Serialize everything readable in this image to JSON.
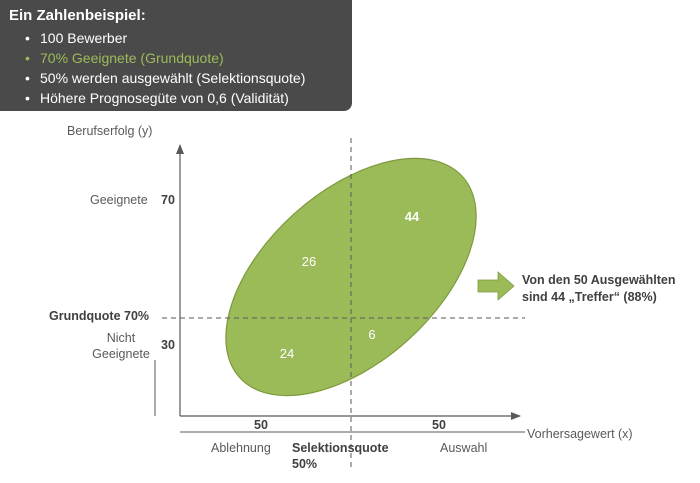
{
  "infobox": {
    "title": "Ein Zahlenbeispiel:",
    "items": [
      "100 Bewerber",
      "70% Geeignete (Grundquote)",
      "50% werden ausgewählt (Selektionsquote)",
      "Höhere Prognosegüte von 0,6 (Validität)"
    ]
  },
  "axes": {
    "y_label": "Berufserfolg (y)",
    "x_label": "Vorhersagewert (x)"
  },
  "y_side": {
    "suitable_label": "Geeignete",
    "suitable_value": "70",
    "base_rate_label": "Grundquote 70%",
    "unsuitable_label_line1": "Nicht",
    "unsuitable_label_line2": "Geeignete",
    "unsuitable_value": "30"
  },
  "x_side": {
    "rejection_value": "50",
    "selection_value": "50",
    "rejection_label": "Ablehnung",
    "selection_label": "Auswahl",
    "selection_rate_line1": "Selektionsquote",
    "selection_rate_line2": "50%"
  },
  "quadrants": {
    "top_left": "26",
    "top_right": "44",
    "bottom_left": "24",
    "bottom_right": "6"
  },
  "callout": {
    "line1": "Von den 50 Ausgewählten",
    "line2": "sind 44 „Treffer“ (88%)"
  },
  "colors": {
    "ellipse_fill": "#9bbb59",
    "ellipse_stroke": "#7d9a3e",
    "infobox_bg": "#4a4a4a",
    "highlight_text": "#9bbb59",
    "axis": "#595959"
  }
}
